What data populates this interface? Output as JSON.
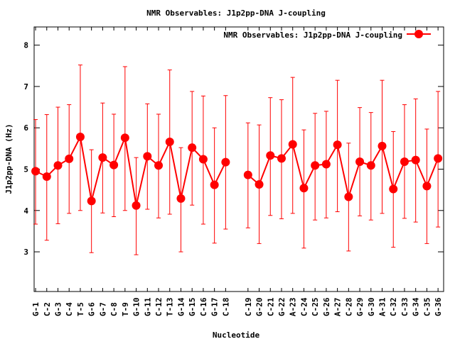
{
  "chart_data": {
    "type": "line",
    "title": "NMR Observables: J1p2pp-DNA J-coupling",
    "xlabel": "Nucleotide",
    "ylabel": "J1p2pp-DNA (Hz)",
    "ylim": [
      2.04,
      8.44
    ],
    "xlim": [
      0.87,
      37.5
    ],
    "yticks": [
      3,
      4,
      5,
      6,
      7,
      8
    ],
    "grid": false,
    "legend": {
      "label": "NMR Observables: J1p2pp-DNA J-coupling",
      "placement": "top-right"
    },
    "series_color": "#ff0000",
    "categories": [
      "G-1",
      "C-2",
      "G-3",
      "C-4",
      "T-5",
      "G-6",
      "G-7",
      "C-8",
      "T-9",
      "G-10",
      "G-11",
      "C-12",
      "T-13",
      "G-14",
      "G-15",
      "C-16",
      "G-17",
      "C-18",
      "C-19",
      "G-20",
      "C-21",
      "G-22",
      "A-23",
      "C-24",
      "C-25",
      "G-26",
      "A-27",
      "C-28",
      "G-29",
      "G-30",
      "A-31",
      "C-32",
      "C-33",
      "G-34",
      "C-35",
      "G-36"
    ],
    "values": [
      4.95,
      4.82,
      5.09,
      5.25,
      5.78,
      4.23,
      5.28,
      5.1,
      5.76,
      4.12,
      5.31,
      5.09,
      5.66,
      4.29,
      5.52,
      5.24,
      4.62,
      5.17,
      4.86,
      4.63,
      5.33,
      5.26,
      5.6,
      4.54,
      5.09,
      5.12,
      5.59,
      4.33,
      5.18,
      5.09,
      5.56,
      4.52,
      5.18,
      5.22,
      4.59,
      5.26
    ],
    "err_low": [
      3.67,
      3.28,
      3.68,
      3.93,
      4.0,
      2.98,
      3.94,
      3.85,
      4.0,
      2.93,
      4.03,
      3.82,
      3.91,
      3.0,
      4.13,
      3.67,
      3.21,
      3.55,
      3.58,
      3.2,
      3.88,
      3.8,
      3.93,
      3.09,
      3.77,
      3.82,
      3.97,
      3.02,
      3.87,
      3.77,
      3.93,
      3.11,
      3.81,
      3.72,
      3.2,
      3.6
    ],
    "err_high": [
      6.2,
      6.32,
      6.5,
      6.56,
      7.52,
      5.47,
      6.6,
      6.33,
      7.48,
      5.28,
      6.58,
      6.33,
      7.4,
      5.52,
      6.88,
      6.77,
      6.0,
      6.78,
      6.12,
      6.07,
      6.73,
      6.68,
      7.22,
      5.95,
      6.35,
      6.4,
      7.15,
      5.63,
      6.49,
      6.37,
      7.15,
      5.91,
      6.56,
      6.7,
      5.97,
      6.88
    ]
  }
}
